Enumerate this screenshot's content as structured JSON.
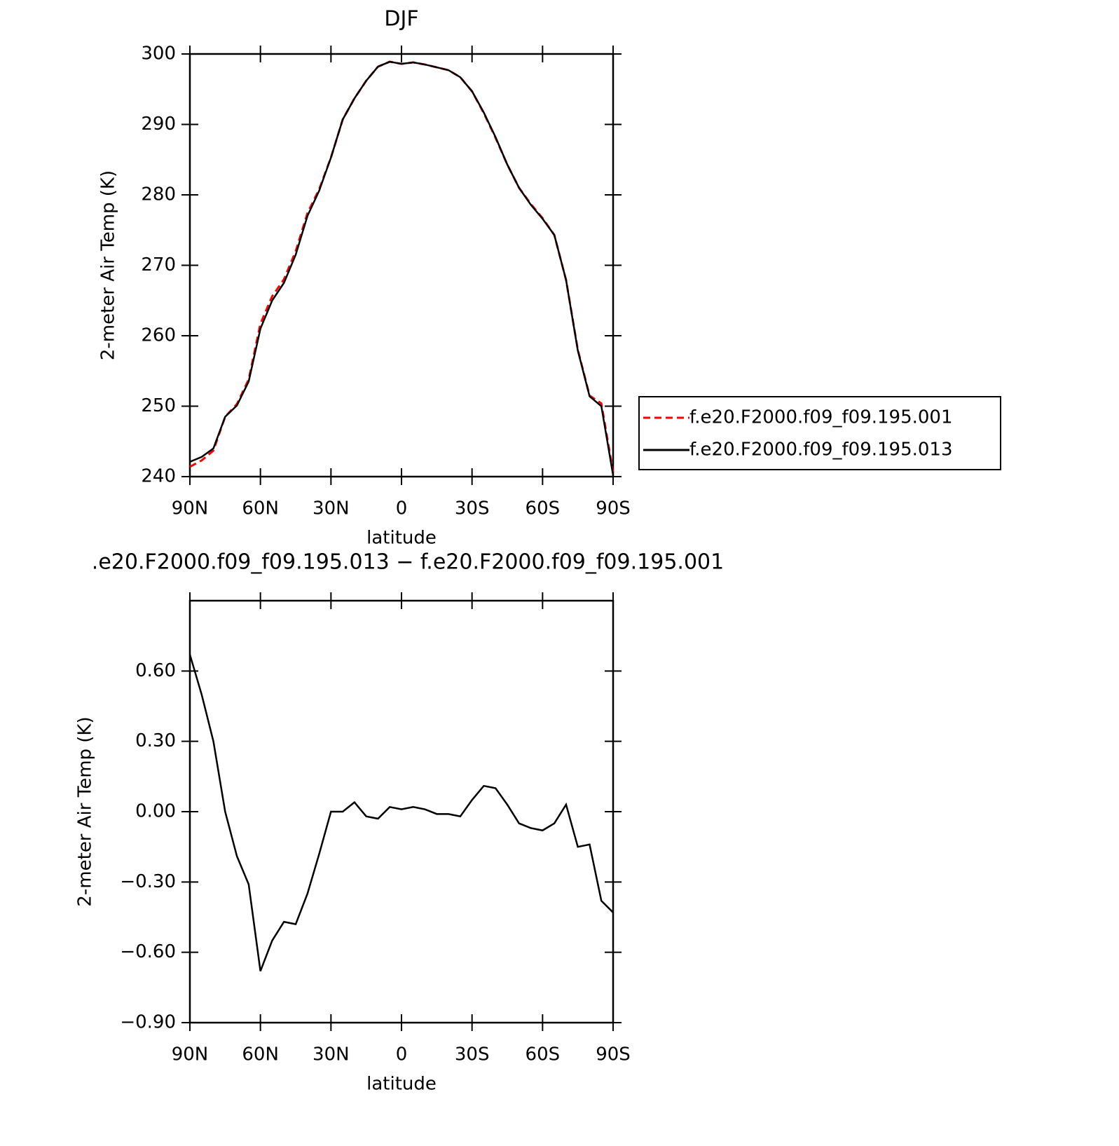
{
  "chart_data": [
    {
      "type": "line",
      "title": "DJF",
      "ylabel": "2-meter Air Temp (K)",
      "xlabel": "latitude",
      "x": [
        90,
        85,
        80,
        75,
        70,
        65,
        60,
        55,
        50,
        45,
        40,
        35,
        30,
        25,
        20,
        15,
        10,
        5,
        0,
        -5,
        -10,
        -15,
        -20,
        -25,
        -30,
        -35,
        -40,
        -45,
        -50,
        -55,
        -60,
        -65,
        -70,
        -75,
        -80,
        -85,
        -90
      ],
      "series": [
        {
          "name": "f.e20.F2000.f09_f09.195.001",
          "color": "#ff0000",
          "linestyle": "dashed",
          "values": [
            241.4,
            242.3,
            243.7,
            248.5,
            250.3,
            253.8,
            261.7,
            265.6,
            268.0,
            272.0,
            277.4,
            280.8,
            285.3,
            290.7,
            293.7,
            296.2,
            298.2,
            298.9,
            298.6,
            298.8,
            298.5,
            298.1,
            297.7,
            296.7,
            294.7,
            291.6,
            288.1,
            284.3,
            281.0,
            278.7,
            276.7,
            274.3,
            267.9,
            258.0,
            251.5,
            250.4,
            240.6
          ]
        },
        {
          "name": "f.e20.F2000.f09_f09.195.013",
          "color": "#000000",
          "linestyle": "solid",
          "values": [
            242.1,
            242.8,
            244.0,
            248.5,
            250.1,
            253.5,
            261.0,
            265.0,
            267.5,
            271.5,
            277.0,
            280.6,
            285.3,
            290.7,
            293.7,
            296.2,
            298.2,
            298.9,
            298.6,
            298.8,
            298.5,
            298.1,
            297.7,
            296.7,
            294.7,
            291.7,
            288.2,
            284.3,
            281.0,
            278.6,
            276.6,
            274.3,
            267.9,
            257.9,
            251.4,
            250.0,
            240.2
          ]
        }
      ],
      "xlim": [
        90,
        -90
      ],
      "xticks": [
        {
          "value": 90,
          "label": "90N"
        },
        {
          "value": 60,
          "label": "60N"
        },
        {
          "value": 30,
          "label": "30N"
        },
        0,
        {
          "value": -30,
          "label": "30S"
        },
        {
          "value": -60,
          "label": "60S"
        },
        {
          "value": -90,
          "label": "90S"
        }
      ],
      "ylim": [
        240,
        300
      ],
      "yticks": [
        240,
        250,
        260,
        270,
        280,
        290,
        300
      ],
      "legend": "outside-right"
    },
    {
      "type": "line",
      "title": ".e20.F2000.f09_f09.195.013 − f.e20.F2000.f09_f09.195.001",
      "ylabel": "2-meter Air Temp (K)",
      "xlabel": "latitude",
      "x": [
        90,
        85,
        80,
        75,
        70,
        65,
        60,
        55,
        50,
        45,
        40,
        35,
        30,
        25,
        20,
        15,
        10,
        5,
        0,
        -5,
        -10,
        -15,
        -20,
        -25,
        -30,
        -35,
        -40,
        -45,
        -50,
        -55,
        -60,
        -65,
        -70,
        -75,
        -80,
        -85,
        -90
      ],
      "color": "#000000",
      "values": [
        0.67,
        0.5,
        0.3,
        0.0,
        -0.19,
        -0.31,
        -0.68,
        -0.55,
        -0.47,
        -0.48,
        -0.35,
        -0.18,
        0.0,
        0.0,
        0.04,
        -0.02,
        -0.03,
        0.02,
        0.01,
        0.02,
        0.01,
        -0.01,
        -0.01,
        -0.02,
        0.05,
        0.11,
        0.1,
        0.03,
        -0.05,
        -0.07,
        -0.08,
        -0.05,
        0.03,
        -0.15,
        -0.14,
        -0.38,
        -0.43
      ],
      "xlim": [
        90,
        -90
      ],
      "xticks": [
        {
          "value": 90,
          "label": "90N"
        },
        {
          "value": 60,
          "label": "60N"
        },
        {
          "value": 30,
          "label": "30N"
        },
        0,
        {
          "value": -30,
          "label": "30S"
        },
        {
          "value": -60,
          "label": "60S"
        },
        {
          "value": -90,
          "label": "90S"
        }
      ],
      "ylim": [
        -0.9,
        0.9
      ],
      "yticks": [
        {
          "value": -0.9,
          "label": "−0.90"
        },
        {
          "value": -0.6,
          "label": "−0.60"
        },
        {
          "value": -0.3,
          "label": "−0.30"
        },
        {
          "value": 0,
          "label": "0.00"
        },
        {
          "value": 0.3,
          "label": "0.30"
        },
        {
          "value": 0.6,
          "label": "0.60"
        }
      ]
    }
  ]
}
